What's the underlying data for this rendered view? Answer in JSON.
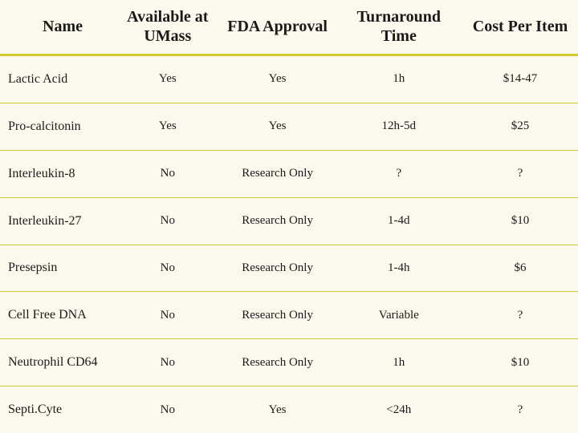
{
  "table": {
    "columns": [
      {
        "label": "Name",
        "width": "20%",
        "align_body": "left"
      },
      {
        "label": "Available at UMass",
        "width": "18%",
        "align_body": "center"
      },
      {
        "label": "FDA Approval",
        "width": "20%",
        "align_body": "center"
      },
      {
        "label": "Turnaround Time",
        "width": "22%",
        "align_body": "center"
      },
      {
        "label": "Cost Per Item",
        "width": "20%",
        "align_body": "center"
      }
    ],
    "rows": [
      [
        "Lactic Acid",
        "Yes",
        "Yes",
        "1h",
        "$14-47"
      ],
      [
        "Pro-calcitonin",
        "Yes",
        "Yes",
        "12h-5d",
        "$25"
      ],
      [
        "Interleukin-8",
        "No",
        "Research Only",
        "?",
        "?"
      ],
      [
        "Interleukin-27",
        "No",
        "Research Only",
        "1-4d",
        "$10"
      ],
      [
        "Presepsin",
        "No",
        "Research Only",
        "1-4h",
        "$6"
      ],
      [
        "Cell Free DNA",
        "No",
        "Research Only",
        "Variable",
        "?"
      ],
      [
        "Neutrophil CD64",
        "No",
        "Research Only",
        "1h",
        "$10"
      ],
      [
        "Septi.Cyte",
        "No",
        "Yes",
        "<24h",
        "?"
      ]
    ],
    "style": {
      "background_color": "#fbf9ee",
      "header_border_color": "#d4c830",
      "row_border_color": "#d4c830",
      "header_fontsize": 20,
      "body_fontsize": 15,
      "name_col_fontsize": 16,
      "text_color": "#1a1a1a",
      "font_family": "Georgia, serif",
      "header_border_width": 3,
      "row_border_width": 1
    }
  }
}
